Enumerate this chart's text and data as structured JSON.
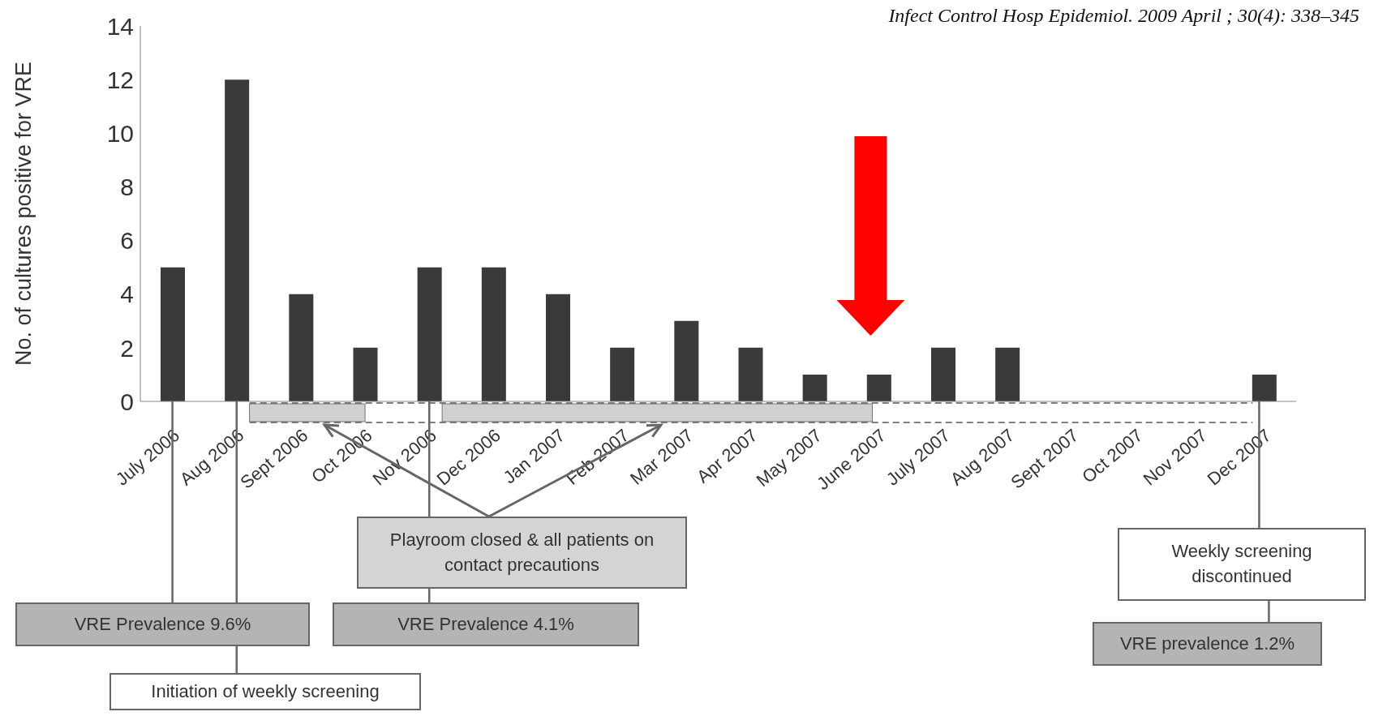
{
  "chart_data": {
    "type": "bar",
    "ylabel": "No. of cultures positive for VRE",
    "categories": [
      "July 2006",
      "Aug 2006",
      "Sept 2006",
      "Oct 2006",
      "Nov 2006",
      "Dec 2006",
      "Jan 2007",
      "Feb 2007",
      "Mar 2007",
      "Apr 2007",
      "May 2007",
      "June 2007",
      "July 2007",
      "Aug 2007",
      "Sept 2007",
      "Oct 2007",
      "Nov 2007",
      "Dec 2007"
    ],
    "values": [
      5,
      12,
      4,
      2,
      5,
      5,
      4,
      2,
      3,
      2,
      1,
      1,
      2,
      2,
      0,
      0,
      0,
      1
    ],
    "color": "#3a3a3a",
    "ylim": [
      0,
      14
    ],
    "yticks": [
      0,
      2,
      4,
      6,
      8,
      10,
      12,
      14
    ],
    "annotations": [
      "Infect Control Hosp Epidemiol. 2009 April ; 30(4): 338–345",
      "VRE Prevalence 9.6%",
      "Initiation of weekly screening",
      "Playroom closed & all patients on contact precautions",
      "VRE Prevalence 4.1%",
      "Weekly screening discontinued",
      "VRE prevalence 1.2%"
    ]
  }
}
